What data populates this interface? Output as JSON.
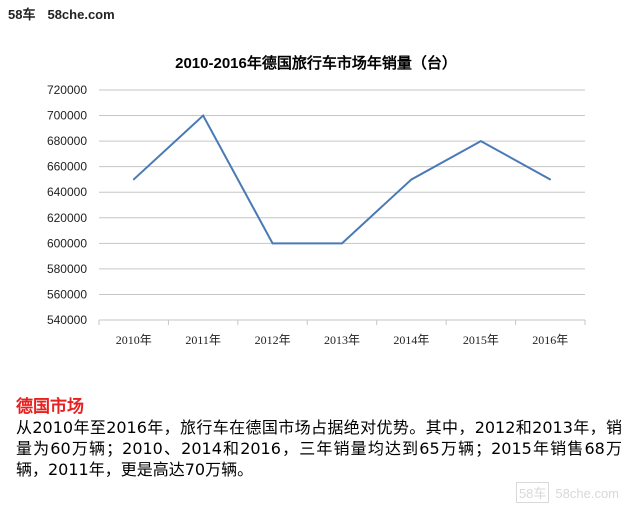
{
  "brand": {
    "left": "58车",
    "site": "58che.com"
  },
  "chart_data": {
    "type": "line",
    "title": "2010-2016年德国旅行车市场年销量（台）",
    "categories": [
      "2010年",
      "2011年",
      "2012年",
      "2013年",
      "2014年",
      "2015年",
      "2016年"
    ],
    "series": [
      {
        "values": [
          650000,
          700000,
          600000,
          600000,
          650000,
          680000,
          650000
        ]
      }
    ],
    "ylim": [
      540000,
      720000
    ],
    "yticks": [
      540000,
      560000,
      580000,
      600000,
      620000,
      640000,
      660000,
      680000,
      700000,
      720000
    ],
    "grid": true,
    "legend": "none",
    "line_color": "#4a7ab5"
  },
  "section_title": "德国市场",
  "paragraph": "从2010年至2016年，旅行车在德国市场占据绝对优势。其中，2012和2013年，销量为60万辆；2010、2014和2016，三年销量均达到65万辆；2015年销售68万辆，2011年，更是高达70万辆。",
  "watermark": {
    "mark": "58车",
    "site": "58che.com"
  }
}
